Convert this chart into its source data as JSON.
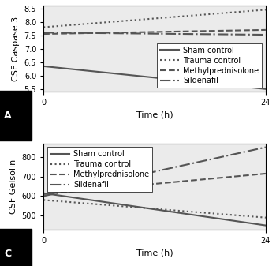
{
  "panel_A": {
    "ylabel": "CSF Caspase 3",
    "xlabel": "Time (h)",
    "label": "A",
    "xlim": [
      0,
      24
    ],
    "xticks": [
      0,
      24
    ],
    "ylim": [
      5.4,
      8.6
    ],
    "yticks": [
      5.5,
      6.0,
      6.5,
      7.0,
      7.5,
      8.0,
      8.5
    ],
    "legend_loc": "lower right",
    "series": [
      {
        "name": "Sham control",
        "x": [
          0,
          24
        ],
        "y": [
          6.35,
          5.5
        ],
        "ls": "solid",
        "lw": 1.5
      },
      {
        "name": "Trauma control",
        "x": [
          0,
          24
        ],
        "y": [
          7.8,
          8.45
        ],
        "ls": "dotted",
        "lw": 1.5
      },
      {
        "name": "Methylprednisolone",
        "x": [
          0,
          24
        ],
        "y": [
          7.55,
          7.7
        ],
        "ls": "dashed",
        "lw": 1.5
      },
      {
        "name": "Sildenafil",
        "x": [
          0,
          24
        ],
        "y": [
          7.6,
          7.52
        ],
        "ls": "dashdot",
        "lw": 1.5
      }
    ]
  },
  "panel_C": {
    "ylabel": "CSF Gelsolin",
    "xlabel": "Time (h)",
    "label": "C",
    "xlim": [
      0,
      24
    ],
    "xticks": [
      0,
      24
    ],
    "ylim": [
      430,
      870
    ],
    "yticks": [
      500,
      600,
      700,
      800
    ],
    "legend_loc": "upper left",
    "series": [
      {
        "name": "Sham control",
        "x": [
          0,
          24
        ],
        "y": [
          615,
          450
        ],
        "ls": "solid",
        "lw": 1.5
      },
      {
        "name": "Trauma control",
        "x": [
          0,
          24
        ],
        "y": [
          580,
          490
        ],
        "ls": "dotted",
        "lw": 1.5
      },
      {
        "name": "Methylprednisolone",
        "x": [
          0,
          24
        ],
        "y": [
          610,
          715
        ],
        "ls": "dashed",
        "lw": 1.5
      },
      {
        "name": "Sildenafil",
        "x": [
          0,
          24
        ],
        "y": [
          600,
          850
        ],
        "ls": "dashdot",
        "lw": 1.5
      }
    ]
  },
  "line_color": "#555555",
  "bg_color": "#ebebeb",
  "label_fontsize": 8,
  "tick_fontsize": 7,
  "legend_fontsize": 7
}
